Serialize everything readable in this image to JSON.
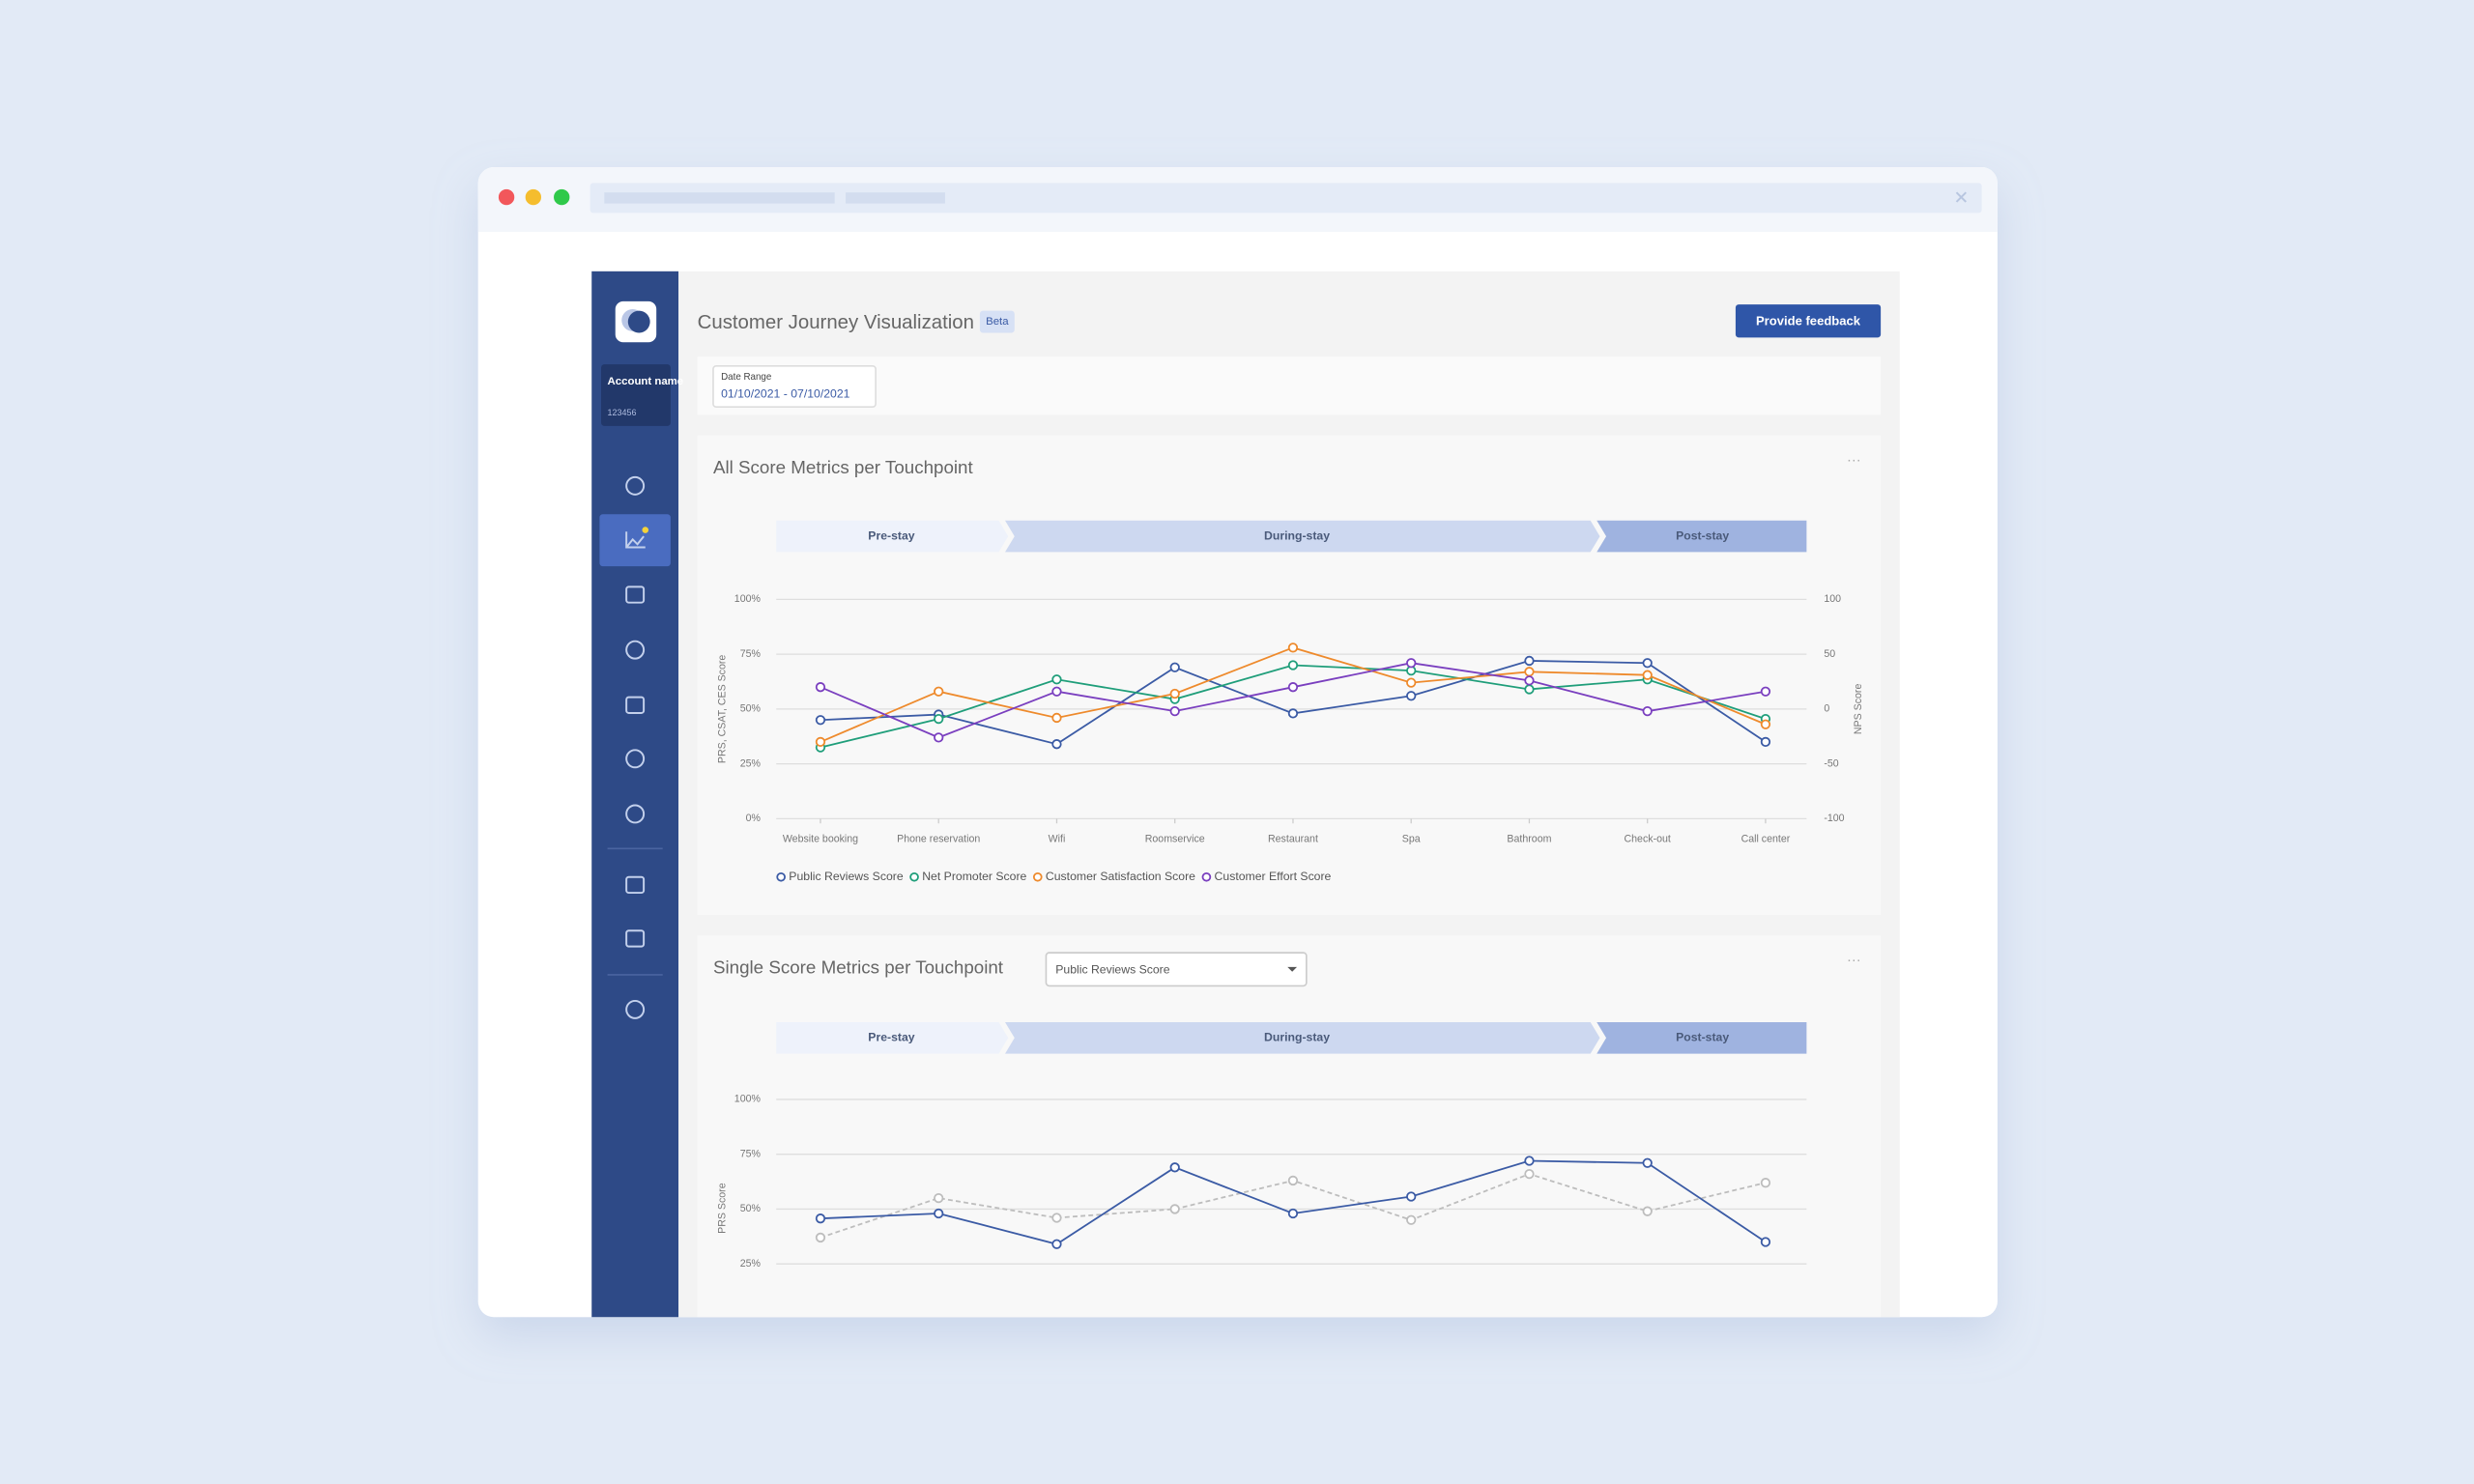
{
  "sidebar": {
    "account_name": "Account name",
    "account_id": "123456"
  },
  "header": {
    "title": "Customer Journey Visualization",
    "badge": "Beta",
    "button": "Provide feedback"
  },
  "date_range": {
    "label": "Date Range",
    "value": "01/10/2021 - 07/10/2021"
  },
  "cards": [
    {
      "title": "All Score Metrics per Touchpoint",
      "chart_data": {
        "type": "line",
        "phases": [
          "Pre-stay",
          "During-stay",
          "Post-stay"
        ],
        "categories": [
          "Website booking",
          "Phone reservation",
          "Wifi",
          "Roomservice",
          "Restaurant",
          "Spa",
          "Bathroom",
          "Check-out",
          "Call center"
        ],
        "ylabel": "PRS, CSAT, CES Score",
        "y2label": "NPS Score",
        "ylim": [
          0,
          100
        ],
        "yticks": [
          {
            "value": 0,
            "label": "0%"
          },
          {
            "value": 25,
            "label": "25%"
          },
          {
            "value": 50,
            "label": "50%"
          },
          {
            "value": 75,
            "label": "75%"
          },
          {
            "value": 100,
            "label": "100%"
          }
        ],
        "y2lim": [
          -100,
          100
        ],
        "y2ticks": [
          -100,
          -50,
          0,
          50,
          100
        ],
        "grid": true,
        "legend": "bottom-left",
        "series": [
          {
            "name": "Public Reviews Score",
            "color": "#3b5ba5",
            "values": [
              45,
              47.5,
              34,
              69,
              48,
              56,
              72,
              71,
              35
            ]
          },
          {
            "name": "Net Promoter Score",
            "color": "#1f9e7a",
            "axis": "y2",
            "values": [
              -35,
              -9,
              27,
              9,
              40,
              35,
              18,
              27,
              -9
            ]
          },
          {
            "name": "Customer Satisfaction Score",
            "color": "#ee8a2c",
            "values": [
              35,
              58,
              46,
              57,
              78,
              62,
              67,
              65.5,
              43
            ]
          },
          {
            "name": "Customer Effort Score",
            "color": "#7a3fbf",
            "values": [
              60,
              37,
              58,
              49,
              60,
              71,
              63,
              49,
              58
            ]
          }
        ]
      }
    },
    {
      "title": "Single Score Metrics per Touchpoint",
      "dropdown": "Public Reviews Score",
      "chart_data": {
        "type": "line",
        "phases": [
          "Pre-stay",
          "During-stay",
          "Post-stay"
        ],
        "categories": [
          null,
          null,
          null,
          null,
          null,
          null,
          null,
          null,
          null
        ],
        "ylabel": "PRS Score",
        "ylim": [
          0,
          100
        ],
        "yticks": [
          {
            "value": 25,
            "label": "25%"
          },
          {
            "value": 50,
            "label": "50%"
          },
          {
            "value": 75,
            "label": "75%"
          },
          {
            "value": 100,
            "label": "100%"
          }
        ],
        "grid": true,
        "series": [
          {
            "color": "#bdbdbd",
            "dashed": true,
            "values": [
              37,
              55,
              46,
              50,
              63,
              45,
              66,
              49,
              62
            ]
          },
          {
            "color": "#3b5ba5",
            "values": [
              45.7,
              48,
              34,
              69,
              48,
              55.7,
              72,
              71,
              35
            ]
          }
        ]
      }
    }
  ]
}
